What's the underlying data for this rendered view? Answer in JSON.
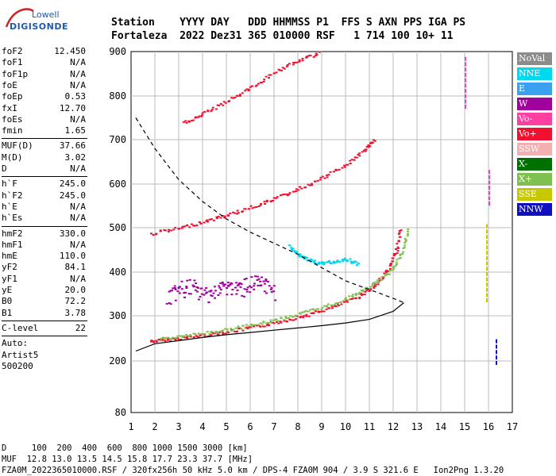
{
  "logo": {
    "line1": "Lowell",
    "line2": "DIGISONDE"
  },
  "header": {
    "row1": "Station    YYYY DAY   DDD HHMMSS P1  FFS S AXN PPS IGA PS",
    "row2": "Fortaleza  2022 Dez31 365 010000 RSF   1 714 100 10+ 11"
  },
  "params": [
    {
      "k": "foF2",
      "v": "12.450"
    },
    {
      "k": "foF1",
      "v": "N/A"
    },
    {
      "k": "foF1p",
      "v": "N/A"
    },
    {
      "k": "foE",
      "v": "N/A"
    },
    {
      "k": "foEp",
      "v": "0.53"
    },
    {
      "k": "fxI",
      "v": "12.70"
    },
    {
      "k": "foEs",
      "v": "N/A"
    },
    {
      "k": "fmin",
      "v": "1.65"
    },
    {
      "sep": true
    },
    {
      "k": "MUF(D)",
      "v": "37.66"
    },
    {
      "k": "M(D)",
      "v": "3.02"
    },
    {
      "k": "D",
      "v": "N/A"
    },
    {
      "sep": true
    },
    {
      "k": "h`F",
      "v": "245.0"
    },
    {
      "k": "h`F2",
      "v": "245.0"
    },
    {
      "k": "h`E",
      "v": "N/A"
    },
    {
      "k": "h`Es",
      "v": "N/A"
    },
    {
      "sep": true
    },
    {
      "k": "hmF2",
      "v": "330.0"
    },
    {
      "k": "hmF1",
      "v": "N/A"
    },
    {
      "k": "hmE",
      "v": "110.0"
    },
    {
      "k": "yF2",
      "v": "84.1"
    },
    {
      "k": "yF1",
      "v": "N/A"
    },
    {
      "k": "yE",
      "v": "20.0"
    },
    {
      "k": "B0",
      "v": "72.2"
    },
    {
      "k": "B1",
      "v": "3.78"
    },
    {
      "sep": true
    },
    {
      "k": "C-level",
      "v": "22"
    },
    {
      "sep": true
    },
    {
      "text": "Auto:"
    },
    {
      "text": "Artist5"
    },
    {
      "text": "500200"
    }
  ],
  "axes": {
    "x_ticks": [
      "1",
      "2",
      "3",
      "4",
      "5",
      "6",
      "7",
      "8",
      "9",
      "10",
      "11",
      "12",
      "13",
      "14",
      "15",
      "16",
      "17"
    ],
    "y_ticks": [
      "80",
      "200",
      "300",
      "400",
      "500",
      "600",
      "700",
      "800",
      "900"
    ]
  },
  "legend": [
    {
      "label": "NoVal",
      "color": "#8c8c8c"
    },
    {
      "label": "NNE",
      "color": "#00d8f0"
    },
    {
      "label": "E",
      "color": "#3aa0f0"
    },
    {
      "label": "W",
      "color": "#a0009c"
    },
    {
      "label": "Vo-",
      "color": "#ff40a0"
    },
    {
      "label": "Vo+",
      "color": "#f01030"
    },
    {
      "label": "SSW",
      "color": "#f4b0b0"
    },
    {
      "label": "X-",
      "color": "#007000"
    },
    {
      "label": "X+",
      "color": "#80c050"
    },
    {
      "label": "SSE",
      "color": "#c8c800"
    },
    {
      "label": "NNW",
      "color": "#1010c0"
    }
  ],
  "footer": {
    "row1": "D     100  200  400  600  800 1000 1500 3000 [km]",
    "row2": "MUF  12.8 13.0 13.5 14.5 15.8 17.7 23.3 37.7 [MHz]",
    "row3": "FZA0M_2022365010000.RSF / 320fx256h 50 kHz 5.0 km / DPS-4 FZA0M 904 / 3.9 S 321.6 E   Ion2Png 1.3.20"
  },
  "chart_data": {
    "type": "scatter",
    "xlim": [
      1,
      17
    ],
    "ylim": [
      80,
      900
    ],
    "xticks": [
      1,
      2,
      3,
      4,
      5,
      6,
      7,
      8,
      9,
      10,
      11,
      12,
      13,
      14,
      15,
      16,
      17
    ],
    "yticks": [
      80,
      200,
      300,
      400,
      500,
      600,
      700,
      800,
      900
    ],
    "grid": true,
    "legend_position": "right",
    "traces": [
      {
        "color_key": "Vo+",
        "points": [
          [
            1.8,
            245
          ],
          [
            2.5,
            248
          ],
          [
            3.5,
            255
          ],
          [
            4.5,
            262
          ],
          [
            5.5,
            270
          ],
          [
            6.5,
            280
          ],
          [
            7.5,
            292
          ],
          [
            8.5,
            305
          ],
          [
            9.5,
            322
          ],
          [
            10.5,
            345
          ],
          [
            11.2,
            370
          ],
          [
            11.8,
            410
          ],
          [
            12.1,
            450
          ],
          [
            12.3,
            500
          ]
        ]
      },
      {
        "color_key": "X+",
        "points": [
          [
            2.2,
            250
          ],
          [
            3.2,
            257
          ],
          [
            4.2,
            264
          ],
          [
            5.2,
            272
          ],
          [
            6.2,
            282
          ],
          [
            7.2,
            294
          ],
          [
            8.2,
            308
          ],
          [
            9.2,
            324
          ],
          [
            10.2,
            345
          ],
          [
            11,
            368
          ],
          [
            11.8,
            400
          ],
          [
            12.3,
            440
          ],
          [
            12.6,
            500
          ]
        ]
      },
      {
        "color_key": "Vo+",
        "points": [
          [
            1.8,
            488
          ],
          [
            3,
            500
          ],
          [
            4,
            515
          ],
          [
            5,
            530
          ],
          [
            6,
            548
          ],
          [
            7,
            568
          ],
          [
            8,
            590
          ],
          [
            9,
            615
          ],
          [
            10,
            645
          ],
          [
            10.8,
            680
          ],
          [
            11.2,
            700
          ]
        ]
      },
      {
        "color_key": "Vo+",
        "points": [
          [
            3.2,
            740
          ],
          [
            4,
            760
          ],
          [
            5,
            790
          ],
          [
            6,
            820
          ],
          [
            7,
            855
          ],
          [
            8,
            880
          ],
          [
            8.9,
            900
          ]
        ]
      },
      {
        "color_key": "W",
        "points": [
          [
            2.5,
            340
          ],
          [
            3,
            360
          ],
          [
            3.5,
            365
          ],
          [
            4,
            350
          ],
          [
            4.5,
            355
          ],
          [
            5,
            370
          ],
          [
            5.5,
            360
          ],
          [
            6,
            375
          ],
          [
            6.5,
            370
          ],
          [
            7,
            355
          ]
        ]
      },
      {
        "color_key": "NNE",
        "points": [
          [
            7.6,
            460
          ],
          [
            8,
            440
          ],
          [
            8.4,
            430
          ],
          [
            8.8,
            420
          ],
          [
            9.4,
            425
          ],
          [
            10,
            430
          ],
          [
            10.5,
            420
          ]
        ]
      }
    ],
    "profile": [
      [
        1.2,
        222
      ],
      [
        2,
        238
      ],
      [
        3,
        245
      ],
      [
        4,
        252
      ],
      [
        5,
        258
      ],
      [
        6,
        263
      ],
      [
        7,
        268
      ],
      [
        8,
        273
      ],
      [
        9,
        278
      ],
      [
        10,
        284
      ],
      [
        11,
        292
      ],
      [
        12,
        310
      ],
      [
        12.45,
        330
      ]
    ],
    "muf_curve": [
      [
        1.2,
        750
      ],
      [
        2,
        680
      ],
      [
        3,
        610
      ],
      [
        4,
        560
      ],
      [
        5,
        520
      ],
      [
        6,
        490
      ],
      [
        7,
        465
      ],
      [
        8,
        440
      ],
      [
        9,
        410
      ],
      [
        10,
        380
      ],
      [
        11,
        360
      ],
      [
        12,
        340
      ],
      [
        12.45,
        330
      ]
    ]
  }
}
